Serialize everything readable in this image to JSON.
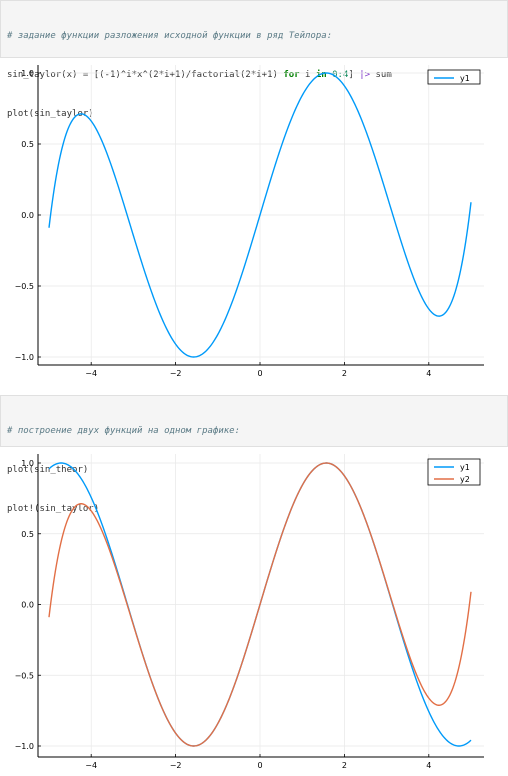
{
  "cell1": {
    "comment": "# задание функции разложения исходной функции в ряд Тейлора:",
    "code_a": "sin_taylor(x) = [(-1)^i*x^(2*i+1)/factorial(2*i+1) ",
    "kw_for": "for",
    "code_b": " i ",
    "kw_in": "in",
    "code_c": " ",
    "range": "0:4",
    "code_d": "] ",
    "pipe": "|>",
    "code_e": " sum",
    "line3": "plot(sin_taylor)"
  },
  "cell2": {
    "comment": "# построение двух функций на одном графике:",
    "line2": "plot(sin_theor)",
    "line3": "plot!(sin_taylor)"
  },
  "colors": {
    "y1": "#009af9",
    "y2": "#e26f46"
  },
  "chart_data": [
    {
      "type": "line",
      "title": "",
      "xlabel": "",
      "ylabel": "",
      "xlim": [
        -5,
        5
      ],
      "ylim": [
        -1,
        1
      ],
      "xticks": [
        -4,
        -2,
        0,
        2,
        4
      ],
      "yticks": [
        -1.0,
        -0.5,
        0.0,
        0.5,
        1.0
      ],
      "xtick_labels": [
        "−4",
        "−2",
        "0",
        "2",
        "4"
      ],
      "ytick_labels": [
        "−1.0",
        "−0.5",
        "0.0",
        "0.5",
        "1.0"
      ],
      "grid": true,
      "legend": "top-right",
      "series": [
        {
          "name": "y1",
          "function": "sin_taylor",
          "color": "#009af9"
        }
      ]
    },
    {
      "type": "line",
      "title": "",
      "xlabel": "",
      "ylabel": "",
      "xlim": [
        -5,
        5
      ],
      "ylim": [
        -1,
        1
      ],
      "xticks": [
        -4,
        -2,
        0,
        2,
        4
      ],
      "yticks": [
        -1.0,
        -0.5,
        0.0,
        0.5,
        1.0
      ],
      "xtick_labels": [
        "−4",
        "−2",
        "0",
        "2",
        "4"
      ],
      "ytick_labels": [
        "−1.0",
        "−0.5",
        "0.0",
        "0.5",
        "1.0"
      ],
      "grid": true,
      "legend": "top-right",
      "series": [
        {
          "name": "y1",
          "function": "sin",
          "color": "#009af9"
        },
        {
          "name": "y2",
          "function": "sin_taylor",
          "color": "#e26f46"
        }
      ]
    }
  ]
}
